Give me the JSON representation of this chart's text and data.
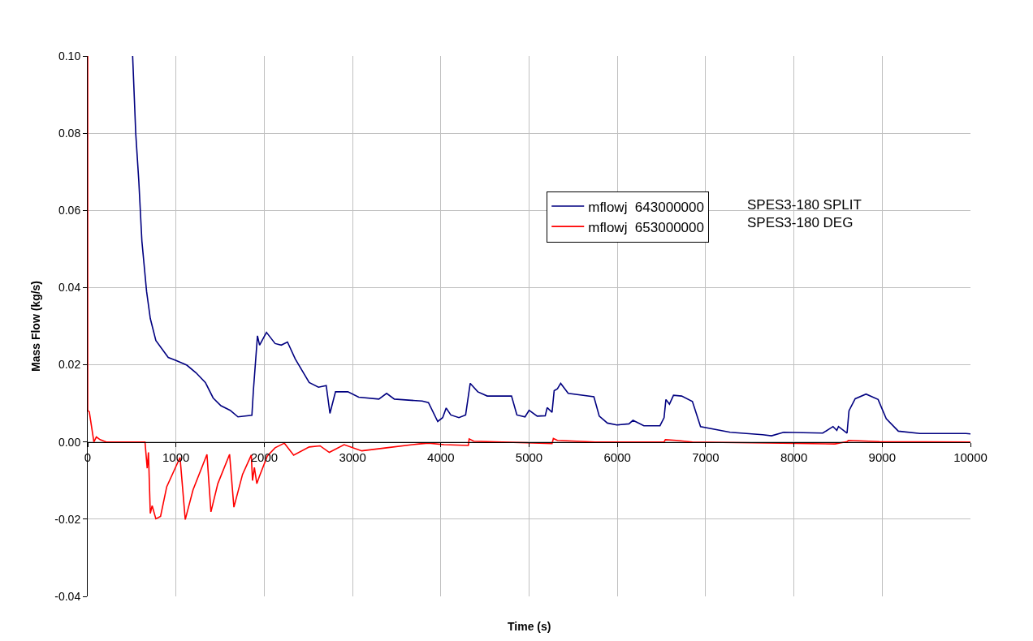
{
  "chart_data": {
    "type": "line",
    "xlabel": "Time (s)",
    "ylabel": "Mass Flow (kg/s)",
    "xlim": [
      0,
      10000
    ],
    "xticks": [
      0,
      1000,
      2000,
      3000,
      4000,
      5000,
      6000,
      7000,
      8000,
      9000,
      10000
    ],
    "ylim": [
      -0.04,
      0.1
    ],
    "yticks": [
      {
        "value": -0.04,
        "label": "-0.04"
      },
      {
        "value": -0.02,
        "label": "-0.02"
      },
      {
        "value": 0,
        "label": "0.00"
      },
      {
        "value": 0.02,
        "label": "0.02"
      },
      {
        "value": 0.04,
        "label": "0.04"
      },
      {
        "value": 0.06,
        "label": "0.06"
      },
      {
        "value": 0.08,
        "label": "0.08"
      },
      {
        "value": 0.1,
        "label": "0.10"
      }
    ],
    "grid": true,
    "legend": "top right",
    "marker": "none",
    "line_style": "solid",
    "annotations": [
      "SPES3-180 SPLIT",
      "SPES3-180 DEG"
    ],
    "series": [
      {
        "name": "mflowj  643000000",
        "color": "#000080",
        "x": [
          509,
          544,
          579,
          614,
          667,
          709,
          772,
          912,
          1000,
          1123,
          1228,
          1333,
          1421,
          1509,
          1614,
          1702,
          1860,
          1877,
          1923,
          1947,
          2025,
          2123,
          2193,
          2263,
          2351,
          2509,
          2614,
          2702,
          2744,
          2807,
          2947,
          3070,
          3298,
          3386,
          3474,
          3789,
          3860,
          3965,
          4021,
          4061,
          4113,
          4205,
          4281,
          4333,
          4419,
          4526,
          4801,
          4862,
          4954,
          5000,
          5092,
          5183,
          5205,
          5260,
          5284,
          5321,
          5358,
          5443,
          5734,
          5795,
          5887,
          5994,
          6131,
          6177,
          6300,
          6483,
          6529,
          6550,
          6590,
          6636,
          6728,
          6850,
          6942,
          7278,
          7645,
          7746,
          7884,
          8327,
          8443,
          8486,
          8505,
          8602,
          8624,
          8694,
          8817,
          8954,
          9046,
          9183,
          9428,
          9948,
          10000
        ],
        "values": [
          0.1,
          0.08,
          0.0675,
          0.052,
          0.039,
          0.032,
          0.0263,
          0.0219,
          0.0211,
          0.0199,
          0.0179,
          0.0154,
          0.0114,
          0.0094,
          0.0082,
          0.0065,
          0.0069,
          0.0134,
          0.0275,
          0.0251,
          0.0284,
          0.0255,
          0.0251,
          0.0259,
          0.0215,
          0.0154,
          0.0142,
          0.0146,
          0.0074,
          0.013,
          0.013,
          0.0116,
          0.0111,
          0.0126,
          0.0111,
          0.0106,
          0.0102,
          0.0053,
          0.0063,
          0.0088,
          0.007,
          0.0063,
          0.007,
          0.0152,
          0.013,
          0.0119,
          0.0119,
          0.007,
          0.0065,
          0.0082,
          0.0067,
          0.0068,
          0.0089,
          0.0077,
          0.0133,
          0.0138,
          0.0152,
          0.0126,
          0.0117,
          0.0067,
          0.0049,
          0.0044,
          0.0047,
          0.0056,
          0.0042,
          0.0042,
          0.0063,
          0.011,
          0.0098,
          0.0121,
          0.0119,
          0.0105,
          0.004,
          0.0025,
          0.0019,
          0.0016,
          0.0025,
          0.0023,
          0.004,
          0.003,
          0.004,
          0.0023,
          0.0081,
          0.0112,
          0.0124,
          0.011,
          0.006,
          0.0028,
          0.0022,
          0.0022,
          0.0021
        ]
      },
      {
        "name": "mflowj  653000000",
        "color": "#ff0000",
        "x": [
          0,
          0,
          18,
          70,
          98,
          140,
          210,
          649,
          674,
          688,
          709,
          730,
          772,
          825,
          895,
          1046,
          1105,
          1193,
          1351,
          1396,
          1474,
          1607,
          1656,
          1754,
          1853,
          1867,
          1888,
          1916,
          1947,
          2035,
          2123,
          2228,
          2333,
          2509,
          2632,
          2737,
          2905,
          3105,
          3386,
          3754,
          3860,
          4035,
          4312,
          4321,
          4373,
          5260,
          5275,
          5321,
          5749,
          6529,
          6544,
          6667,
          6850,
          8465,
          8602,
          8618,
          8969,
          10000
        ],
        "values": [
          0.1,
          0.0082,
          0.0078,
          0,
          0.0013,
          0.0006,
          0,
          0,
          -0.0068,
          -0.0027,
          -0.0185,
          -0.0165,
          -0.0199,
          -0.0193,
          -0.0116,
          -0.004,
          -0.0201,
          -0.0124,
          -0.0032,
          -0.0181,
          -0.0108,
          -0.0032,
          -0.0169,
          -0.0084,
          -0.0034,
          -0.01,
          -0.0066,
          -0.0108,
          -0.0088,
          -0.0036,
          -0.0015,
          -0.0003,
          -0.0034,
          -0.0013,
          -0.001,
          -0.0027,
          -0.0007,
          -0.0023,
          -0.0015,
          -0.0005,
          -0.0003,
          -0.0007,
          -0.0009,
          0.0008,
          0.0002,
          -0.0004,
          0.0009,
          0.0004,
          0,
          0,
          0.0006,
          0.0004,
          0,
          -0.0005,
          0.0001,
          0.0004,
          0.0001,
          0
        ]
      }
    ]
  }
}
